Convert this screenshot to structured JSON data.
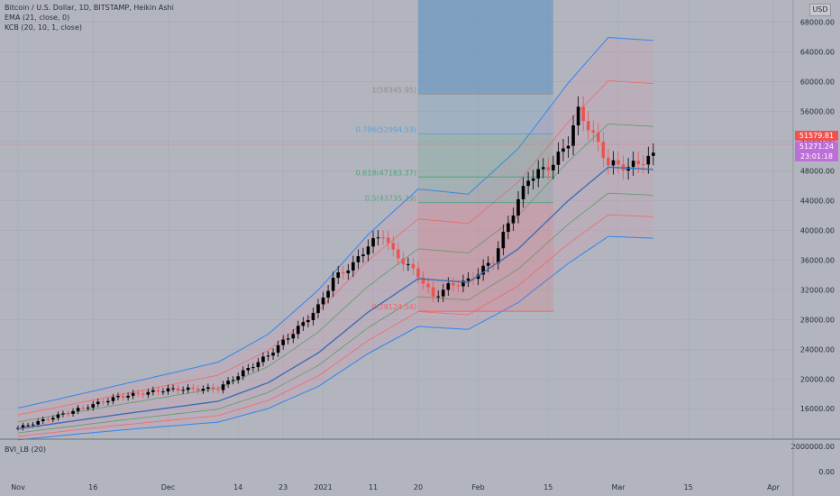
{
  "header": {
    "title": "Bitcoin / U.S. Dollar, 1D, BITSTAMP, Heikin Ashi",
    "indicators": [
      "EMA (21, close, 0)",
      "KCB (20, 10, 1, close)"
    ],
    "currency": "USD"
  },
  "price_tags": {
    "last": "51579.81",
    "current": "51271.24",
    "countdown": "23:01:18"
  },
  "colors": {
    "background": "#b2b5be",
    "bull_candle": "#000000",
    "bear_candle": "#ef5350",
    "ema": "#3d6fb3",
    "outer_band": "#2f86f0",
    "middle_band": "#ef6a6a",
    "inner_band": "#5a9d6a",
    "last_price_tag": "#ef5350",
    "current_price_tag": "#bd6fd8"
  },
  "indicator_pane": {
    "label": "BVI_LB (20)",
    "tick_labels": [
      "2000000.00",
      "0.00"
    ]
  },
  "chart_data": {
    "type": "candlestick",
    "y_ticks": [
      16000,
      20000,
      24000,
      28000,
      32000,
      36000,
      40000,
      44000,
      48000,
      52000,
      56000,
      60000,
      64000,
      68000
    ],
    "y_tick_labels": [
      "16000.00",
      "20000.00",
      "24000.00",
      "28000.00",
      "32000.00",
      "36000.00",
      "40000.00",
      "44000.00",
      "48000.00",
      "52000.00",
      "56000.00",
      "60000.00",
      "64000.00",
      "68000.00"
    ],
    "ylim": [
      11900,
      71000
    ],
    "x_labels": [
      "Nov",
      "16",
      "Dec",
      "14",
      "23",
      "2021",
      "11",
      "20",
      "Feb",
      "15",
      "Mar",
      "15",
      "Apr"
    ],
    "x_label_days": [
      0,
      15,
      30,
      44,
      53,
      61,
      71,
      80,
      92,
      106,
      120,
      134,
      151
    ],
    "fib_levels": [
      {
        "label": "1(58345.95)",
        "value": 58345.95
      },
      {
        "label": "0.786(52994.53)",
        "value": 52994.53
      },
      {
        "label": "0.618(47183.37)",
        "value": 47183.37
      },
      {
        "label": "0.5(43735.29)",
        "value": 43735.29
      },
      {
        "label": "0(29124.54)",
        "value": 29124.54
      }
    ],
    "last_price": 51579.81,
    "current_price": 51271.24,
    "ema_anchors": [
      [
        0,
        13300
      ],
      [
        20,
        15200
      ],
      [
        40,
        17000
      ],
      [
        50,
        19500
      ],
      [
        60,
        23500
      ],
      [
        70,
        29000
      ],
      [
        80,
        33500
      ],
      [
        90,
        33000
      ],
      [
        100,
        37500
      ],
      [
        110,
        44000
      ],
      [
        118,
        48500
      ],
      [
        127,
        48200
      ]
    ],
    "candle_anchors": [
      [
        0,
        13400
      ],
      [
        10,
        15500
      ],
      [
        20,
        17600
      ],
      [
        30,
        18600
      ],
      [
        40,
        18700
      ],
      [
        44,
        20500
      ],
      [
        50,
        23200
      ],
      [
        57,
        27500
      ],
      [
        60,
        29700
      ],
      [
        63,
        33500
      ],
      [
        67,
        35400
      ],
      [
        70,
        38000
      ],
      [
        73,
        39500
      ],
      [
        75,
        37000
      ],
      [
        80,
        34000
      ],
      [
        83,
        31000
      ],
      [
        86,
        32500
      ],
      [
        90,
        33200
      ],
      [
        95,
        36000
      ],
      [
        98,
        41000
      ],
      [
        102,
        47000
      ],
      [
        107,
        49000
      ],
      [
        110,
        52000
      ],
      [
        112,
        56000
      ],
      [
        114,
        54000
      ],
      [
        118,
        49000
      ],
      [
        122,
        48500
      ],
      [
        127,
        50000
      ]
    ],
    "vertical_shading": {
      "from_day": 80,
      "to_day": 107
    }
  }
}
